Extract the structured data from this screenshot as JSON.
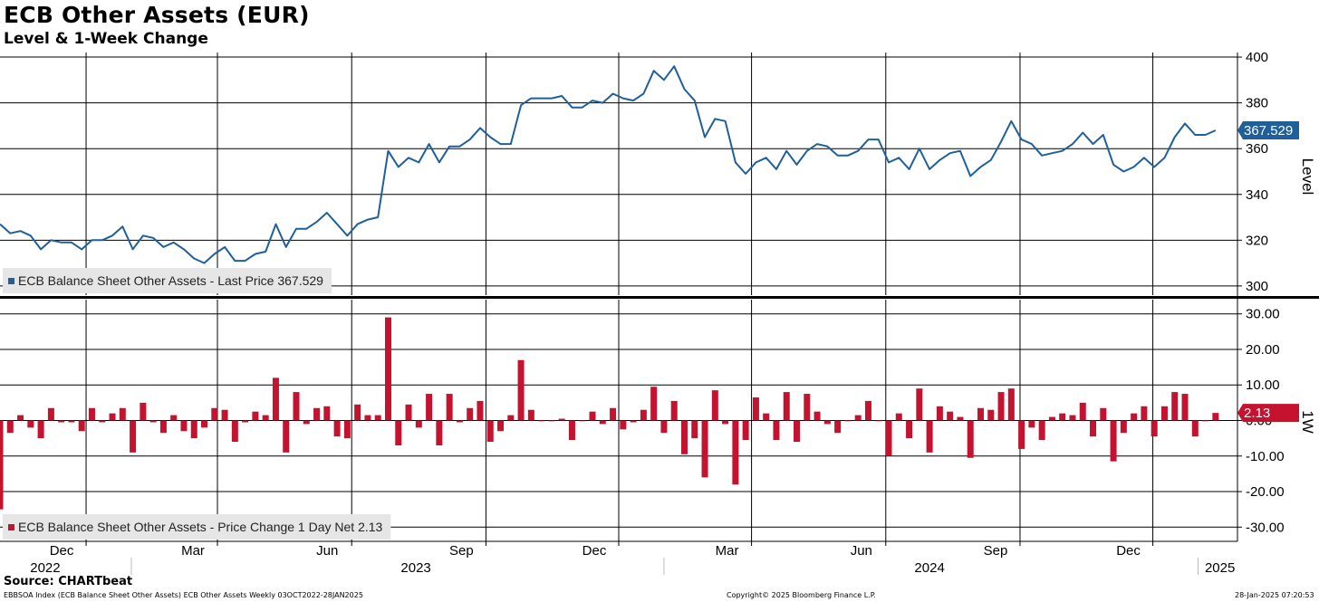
{
  "header": {
    "title": "ECB Other Assets (EUR)",
    "subtitle": "Level & 1-Week Change"
  },
  "footer": {
    "source": "Source: CHARTbeat",
    "index_info": "EBBSOA Index (ECB Balance Sheet Other Assets) ECB Other Assets  Weekly 03OCT2022-28JAN2025",
    "copyright": "Copyright© 2025 Bloomberg Finance L.P.",
    "timestamp": "28-Jan-2025 07:20:53"
  },
  "colors": {
    "level_line": "#1f5f9a",
    "change_bar": "#c4122f",
    "grid": "#000000",
    "legend_bg": "#e6e6e6"
  },
  "x_axis": {
    "month_ticks": [
      {
        "label": "Dec",
        "date": "2022-12-01"
      },
      {
        "label": "Mar",
        "date": "2023-03-01"
      },
      {
        "label": "Jun",
        "date": "2023-06-01"
      },
      {
        "label": "Sep",
        "date": "2023-09-01"
      },
      {
        "label": "Dec",
        "date": "2023-12-01"
      },
      {
        "label": "Mar",
        "date": "2024-03-01"
      },
      {
        "label": "Jun",
        "date": "2024-06-01"
      },
      {
        "label": "Sep",
        "date": "2024-09-01"
      },
      {
        "label": "Dec",
        "date": "2024-12-01"
      }
    ],
    "year_labels": [
      {
        "label": "2022",
        "date": "2022-11-03"
      },
      {
        "label": "2023",
        "date": "2023-07-15"
      },
      {
        "label": "2024",
        "date": "2024-07-01"
      },
      {
        "label": "2025",
        "date": "2025-01-16"
      }
    ],
    "year_boundaries": [
      "2023-01-01",
      "2024-01-01",
      "2025-01-01"
    ],
    "start": "2022-10-03",
    "end": "2025-01-28"
  },
  "chart_data": [
    {
      "type": "line",
      "axis_title": "Level",
      "legend": "ECB Balance Sheet Other Assets - Last Price 367.529",
      "last_value_label": "367.529",
      "ylim": [
        296,
        402
      ],
      "y_ticks": [
        {
          "value": 300,
          "label": "300"
        },
        {
          "value": 320,
          "label": "320"
        },
        {
          "value": 340,
          "label": "340"
        },
        {
          "value": 360,
          "label": "360"
        },
        {
          "value": 380,
          "label": "380"
        },
        {
          "value": 400,
          "label": "400"
        }
      ],
      "grid": true,
      "legend_position": "bottom-left",
      "series": [
        {
          "start_date": "2022-10-03",
          "interval_days": 7,
          "values": [
            327,
            323,
            324,
            322,
            316,
            320,
            319,
            319,
            316,
            320,
            320,
            322,
            326,
            316,
            322,
            321,
            317,
            319,
            316,
            312,
            310,
            314,
            317,
            311,
            311,
            314,
            315,
            327,
            317,
            325,
            325,
            328,
            332,
            327,
            322,
            327,
            329,
            330,
            359,
            352,
            356,
            354,
            362,
            354,
            361,
            361,
            364,
            369,
            365,
            362,
            362,
            379,
            382,
            382,
            382,
            383,
            378,
            378,
            381,
            380,
            384,
            382,
            381,
            384,
            394,
            390,
            396,
            386,
            381,
            365,
            373,
            372,
            354,
            349,
            354,
            356,
            351,
            359,
            353,
            359,
            362,
            361,
            357,
            357,
            359,
            364,
            364,
            354,
            356,
            351,
            360,
            351,
            355,
            358,
            359,
            348,
            352,
            355,
            363,
            372,
            364,
            362,
            357,
            358,
            359,
            362,
            367,
            362,
            366,
            353,
            350,
            352,
            356,
            352,
            356,
            365,
            371,
            366,
            366,
            368
          ]
        }
      ]
    },
    {
      "type": "bar",
      "axis_title": "1W",
      "legend": "ECB Balance Sheet Other Assets - Price Change 1 Day Net 2.13",
      "last_value_label": "2.13",
      "ylim": [
        -34,
        34
      ],
      "y_ticks": [
        {
          "value": -30,
          "label": "-30.00"
        },
        {
          "value": -20,
          "label": "-20.00"
        },
        {
          "value": -10,
          "label": "-10.00"
        },
        {
          "value": 0,
          "label": "0.00"
        },
        {
          "value": 10,
          "label": "10.00"
        },
        {
          "value": 20,
          "label": "20.00"
        },
        {
          "value": 30,
          "label": "30.00"
        }
      ],
      "grid": true,
      "legend_position": "bottom-left",
      "series": [
        {
          "start_date": "2022-10-03",
          "interval_days": 7,
          "values": [
            -25,
            -3.5,
            1.5,
            -2,
            -5,
            3.5,
            -0.5,
            -0.5,
            -3,
            3.5,
            -0.5,
            2,
            3.5,
            -9,
            5,
            -0.5,
            -3.5,
            1.5,
            -3,
            -5,
            -2,
            3.5,
            3,
            -6,
            -0.5,
            2.5,
            1.5,
            12,
            -9,
            8,
            -1,
            3.5,
            4,
            -4.5,
            -5,
            4.5,
            1.5,
            1.5,
            29,
            -7,
            4.5,
            -2,
            7.5,
            -7,
            7.5,
            -0.5,
            3.5,
            5.5,
            -6,
            -3,
            1.5,
            17,
            3,
            0,
            0,
            0.5,
            -5.5,
            0,
            2.5,
            -1,
            3.5,
            -2.5,
            -0.5,
            3,
            9.5,
            -3.5,
            5.5,
            -9.5,
            -5,
            -16,
            8.5,
            -1,
            -18,
            -5.5,
            6.5,
            2,
            -5.5,
            8,
            -6,
            7.5,
            2.5,
            -1,
            -3.5,
            0,
            1.5,
            5.5,
            0,
            -10,
            2,
            -5,
            9,
            -9,
            4,
            2.5,
            1,
            -10.5,
            3.5,
            3,
            8,
            9,
            -8,
            -2,
            -5.5,
            1,
            2,
            1.5,
            5,
            -4.5,
            3.5,
            -11.5,
            -3.5,
            2,
            4,
            -4.5,
            4,
            8,
            7.5,
            -4.5,
            0,
            2.13
          ]
        }
      ]
    }
  ]
}
